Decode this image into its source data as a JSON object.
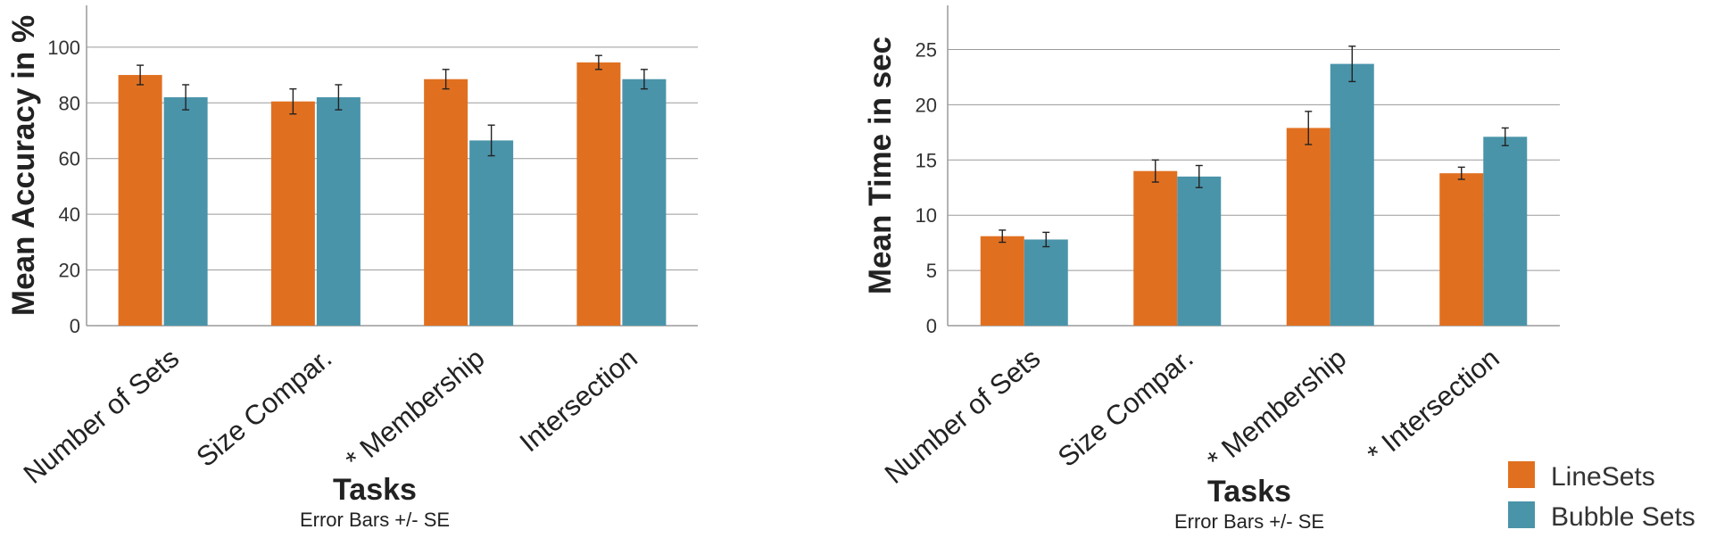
{
  "legend": {
    "placement": "bottom-right",
    "items": [
      {
        "label": "LineSets",
        "color": "#E07020"
      },
      {
        "label": "Bubble Sets",
        "color": "#4A94AA"
      }
    ]
  },
  "chart_data": [
    {
      "type": "bar",
      "ylabel": "Mean Accuracy in %",
      "xlabel": "Tasks",
      "note": "Error Bars +/-  SE",
      "ylim": [
        0,
        115
      ],
      "yticks": [
        0,
        20,
        40,
        60,
        80,
        100
      ],
      "grid": true,
      "categories": [
        "Number of Sets",
        "Size Compar.",
        "* Membership",
        "Intersection"
      ],
      "series": [
        {
          "name": "LineSets",
          "color": "#E07020",
          "values": [
            90,
            80.5,
            88.5,
            94.5
          ],
          "se": [
            3.5,
            4.5,
            3.5,
            2.5
          ]
        },
        {
          "name": "Bubble Sets",
          "color": "#4A94AA",
          "values": [
            82,
            82,
            66.5,
            88.5
          ],
          "se": [
            4.5,
            4.5,
            5.5,
            3.5
          ]
        }
      ]
    },
    {
      "type": "bar",
      "ylabel": "Mean Time in sec",
      "xlabel": "Tasks",
      "note": "Error Bars +/-  SE",
      "ylim": [
        0,
        29
      ],
      "yticks": [
        0,
        5,
        10,
        15,
        20,
        25
      ],
      "grid": true,
      "categories": [
        "Number of Sets",
        "Size Compar.",
        "* Membership",
        "* Intersection"
      ],
      "series": [
        {
          "name": "LineSets",
          "color": "#E07020",
          "values": [
            8.1,
            14,
            17.9,
            13.8
          ],
          "se": [
            0.55,
            1.0,
            1.5,
            0.55
          ]
        },
        {
          "name": "Bubble Sets",
          "color": "#4A94AA",
          "values": [
            7.8,
            13.5,
            23.7,
            17.1
          ],
          "se": [
            0.65,
            1.0,
            1.6,
            0.8
          ]
        }
      ]
    }
  ]
}
